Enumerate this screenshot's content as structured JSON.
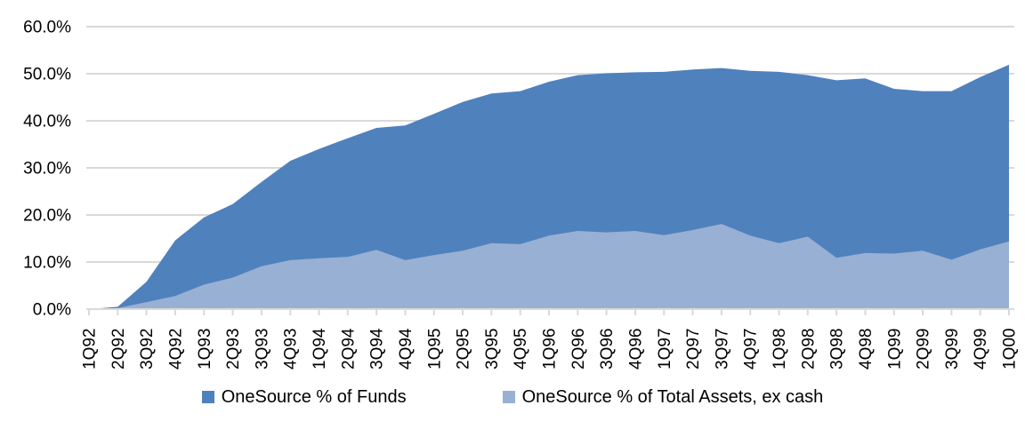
{
  "chart_data": {
    "type": "area",
    "title": "",
    "categories": [
      "1Q92",
      "2Q92",
      "3Q92",
      "4Q92",
      "1Q93",
      "2Q93",
      "3Q93",
      "4Q93",
      "1Q94",
      "2Q94",
      "3Q94",
      "4Q94",
      "1Q95",
      "2Q95",
      "3Q95",
      "4Q95",
      "1Q96",
      "2Q96",
      "3Q96",
      "4Q96",
      "1Q97",
      "2Q97",
      "3Q97",
      "4Q97",
      "1Q98",
      "2Q98",
      "3Q98",
      "4Q98",
      "1Q99",
      "2Q99",
      "3Q99",
      "4Q99",
      "1Q00"
    ],
    "series": [
      {
        "name": "OneSource % of Funds",
        "color": "#4f81bd",
        "values": [
          0,
          0.5,
          5.8,
          14.6,
          19.5,
          22.3,
          27.0,
          31.5,
          34.0,
          36.3,
          38.5,
          39.0,
          41.5,
          44.0,
          45.8,
          46.3,
          48.3,
          49.7,
          50.1,
          50.3,
          50.4,
          50.9,
          51.2,
          50.6,
          50.4,
          49.7,
          48.6,
          49.0,
          46.8,
          46.3,
          46.3,
          49.3,
          51.9
        ]
      },
      {
        "name": "OneSource % of Total Assets, ex cash",
        "color": "#98b0d3",
        "values": [
          0,
          0.2,
          1.5,
          2.8,
          5.2,
          6.7,
          9.1,
          10.4,
          10.8,
          11.1,
          12.6,
          10.4,
          11.5,
          12.4,
          14.0,
          13.8,
          15.6,
          16.6,
          16.3,
          16.6,
          15.7,
          16.8,
          18.1,
          15.6,
          14.0,
          15.4,
          10.9,
          11.9,
          11.8,
          12.4,
          10.5,
          12.7,
          14.4
        ]
      }
    ],
    "xlabel": "",
    "ylabel": "",
    "ylim": [
      0,
      60
    ],
    "ytick_step": 10,
    "ytick_labels": [
      "0.0%",
      "10.0%",
      "20.0%",
      "30.0%",
      "40.0%",
      "50.0%",
      "60.0%"
    ],
    "grid": true,
    "legend_position": "bottom",
    "x_label_rotation": -90
  },
  "colors": {
    "gridline": "#d9d9d9",
    "axis_line": "#d9d9d9",
    "text": "#000000",
    "background": "#ffffff"
  }
}
